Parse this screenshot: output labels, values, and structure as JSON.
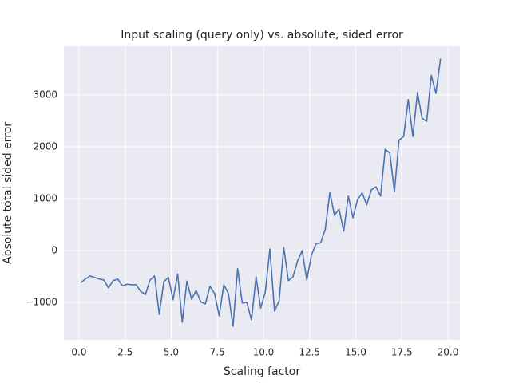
{
  "chart_data": {
    "type": "line",
    "title": "Input scaling (query only) vs. absolute, sided error",
    "x_label": "Scaling factor",
    "y_label": "Absolute total sided error",
    "x": [
      0.1,
      0.35,
      0.6,
      0.85,
      1.1,
      1.35,
      1.6,
      1.85,
      2.1,
      2.35,
      2.6,
      2.85,
      3.1,
      3.35,
      3.6,
      3.85,
      4.1,
      4.35,
      4.6,
      4.85,
      5.1,
      5.35,
      5.6,
      5.85,
      6.1,
      6.35,
      6.6,
      6.85,
      7.1,
      7.35,
      7.6,
      7.85,
      8.1,
      8.35,
      8.6,
      8.85,
      9.1,
      9.35,
      9.6,
      9.85,
      10.1,
      10.35,
      10.6,
      10.85,
      11.1,
      11.35,
      11.6,
      11.85,
      12.1,
      12.35,
      12.6,
      12.85,
      13.1,
      13.35,
      13.6,
      13.85,
      14.1,
      14.35,
      14.6,
      14.85,
      15.1,
      15.35,
      15.6,
      15.85,
      16.1,
      16.35,
      16.6,
      16.85,
      17.1,
      17.35,
      17.6,
      17.85,
      18.1,
      18.35,
      18.6,
      18.85,
      19.1,
      19.35,
      19.6
    ],
    "series": [
      {
        "color": "#4c72b0",
        "values": [
          -620,
          -550,
          -490,
          -520,
          -550,
          -570,
          -720,
          -580,
          -550,
          -680,
          -650,
          -660,
          -660,
          -790,
          -850,
          -570,
          -490,
          -1230,
          -600,
          -520,
          -950,
          -450,
          -1380,
          -590,
          -940,
          -770,
          -990,
          -1030,
          -690,
          -830,
          -1260,
          -660,
          -830,
          -1460,
          -350,
          -1010,
          -1000,
          -1340,
          -510,
          -1110,
          -800,
          30,
          -1170,
          -970,
          60,
          -580,
          -510,
          -200,
          0,
          -570,
          -90,
          130,
          150,
          410,
          1120,
          680,
          800,
          370,
          1050,
          630,
          980,
          1110,
          880,
          1170,
          1230,
          1050,
          1950,
          1880,
          1140,
          2130,
          2200,
          2910,
          2200,
          3050,
          2550,
          2490,
          3380,
          3030,
          3700
        ]
      }
    ],
    "xlim": [
      -0.82,
      20.65
    ],
    "ylim": [
      -1723,
      3938
    ],
    "xticks": [
      {
        "value": 0,
        "label": "0.0"
      },
      2.5,
      {
        "value": 5,
        "label": "5.0"
      },
      7.5,
      {
        "value": 10,
        "label": "10.0"
      },
      12.5,
      {
        "value": 15,
        "label": "15.0"
      },
      17.5,
      {
        "value": 20,
        "label": "20.0"
      }
    ],
    "yticks": [
      {
        "value": -1000,
        "label": "−1000"
      },
      0,
      1000,
      2000,
      3000
    ],
    "grid": true
  }
}
